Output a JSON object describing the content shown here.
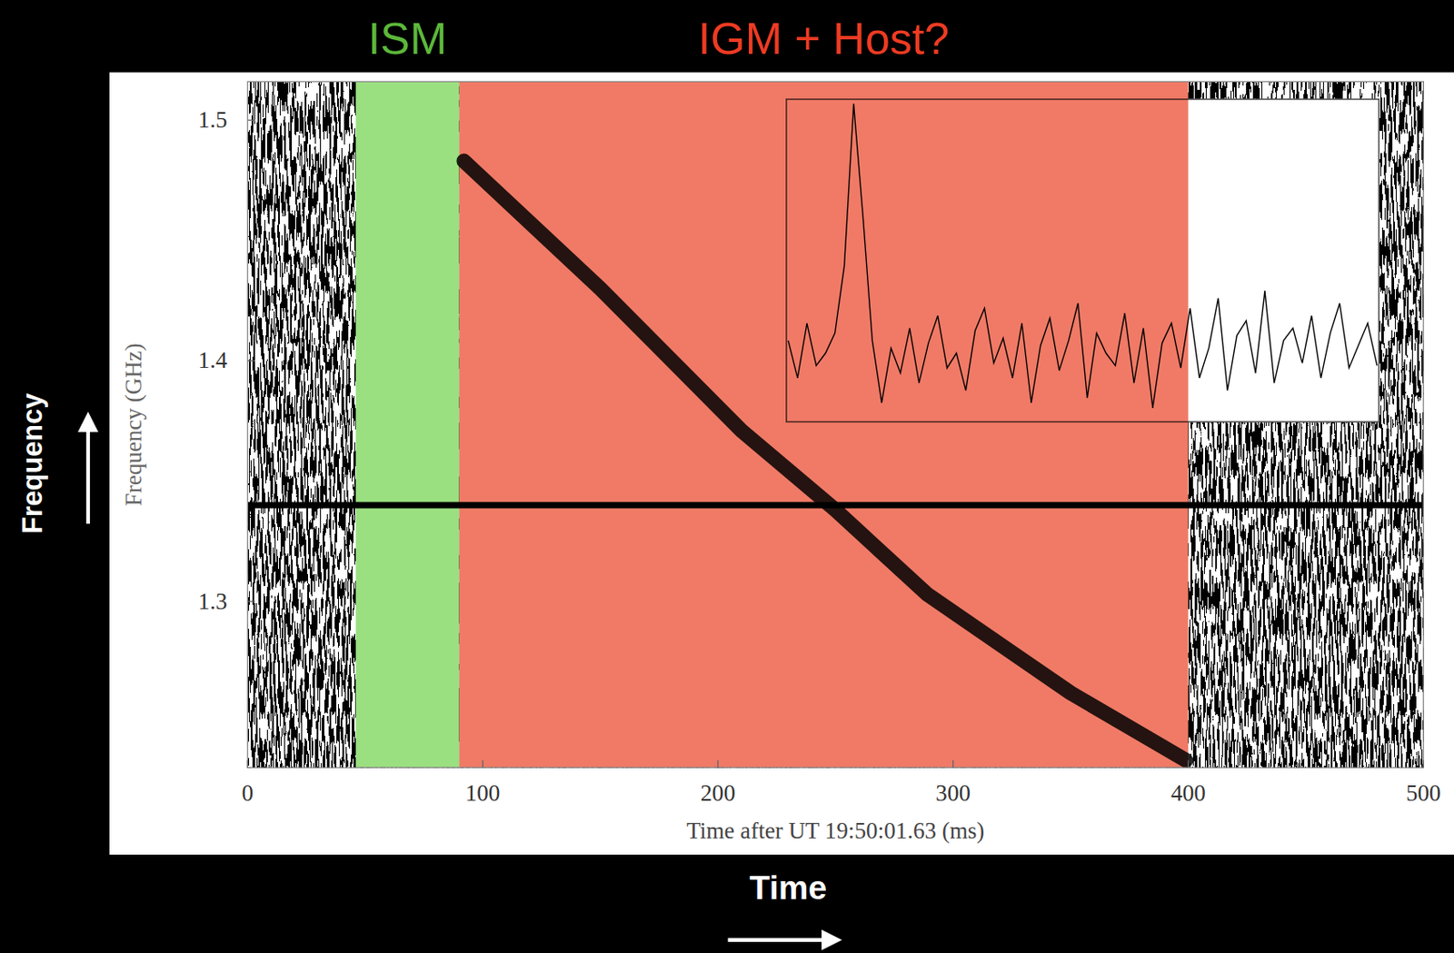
{
  "chart_data": {
    "type": "line",
    "x_label": "Time after UT 19:50:01.63 (ms)",
    "y_label": "Frequency (GHz)",
    "x": [
      92,
      150,
      210,
      250,
      289,
      350,
      399
    ],
    "values": [
      1.483,
      1.43,
      1.371,
      1.338,
      1.303,
      1.262,
      1.234
    ],
    "xlim": [
      0,
      500
    ],
    "ylim": [
      1.231,
      1.516
    ],
    "xticks": [
      0,
      100,
      200,
      300,
      400,
      500
    ],
    "yticks": [
      1.3,
      1.4,
      1.5
    ],
    "regions": [
      {
        "label": "ISM",
        "start": 46,
        "end": 90,
        "color": "#9be080"
      },
      {
        "label": "IGM + Host?",
        "start": 90,
        "end": 400,
        "color": "#f07a66"
      }
    ],
    "hline": 1.34,
    "inset": {
      "values": [
        0.05,
        -0.1,
        0.12,
        -0.05,
        0.0,
        0.08,
        0.35,
        1.0,
        0.55,
        0.05,
        -0.2,
        0.02,
        -0.08,
        0.1,
        -0.12,
        0.04,
        0.15,
        -0.06,
        0.0,
        -0.15,
        0.09,
        0.18,
        -0.04,
        0.06,
        -0.1,
        0.12,
        -0.2,
        0.03,
        0.14,
        -0.07,
        0.05,
        0.2,
        -0.18,
        0.08,
        0.0,
        -0.05,
        0.16,
        -0.12,
        0.1,
        -0.22,
        0.04,
        0.12,
        -0.06,
        0.18,
        -0.1,
        0.02,
        0.22,
        -0.15,
        0.07,
        0.13,
        -0.08,
        0.25,
        -0.12,
        0.05,
        0.1,
        -0.04,
        0.15,
        -0.1,
        0.08,
        0.2,
        -0.06,
        0.03,
        0.12,
        -0.05
      ]
    },
    "annotations": [
      "Frequency",
      "Time"
    ]
  }
}
